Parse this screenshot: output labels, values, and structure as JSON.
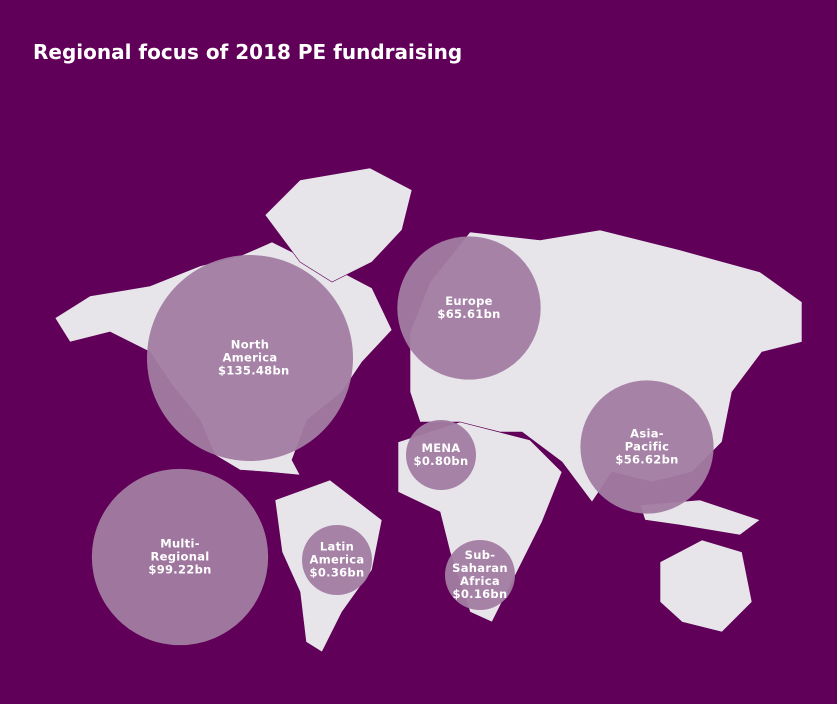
{
  "chart_data": {
    "type": "bubble",
    "title": "Regional focus of 2018 PE fundraising",
    "categories": [
      "North America",
      "Europe",
      "Asia-Pacific",
      "MENA",
      "Multi-Regional",
      "Latin America",
      "Sub-Saharan Africa"
    ],
    "values": [
      135.48,
      65.61,
      56.62,
      0.8,
      99.22,
      0.36,
      0.16
    ],
    "value_labels": [
      "$135.48bn",
      "$65.61bn",
      "$56.62bn",
      "$0.80bn",
      "$99.22bn",
      "$0.36bn",
      "$0.16bn"
    ],
    "color": "#a27ca2"
  }
}
